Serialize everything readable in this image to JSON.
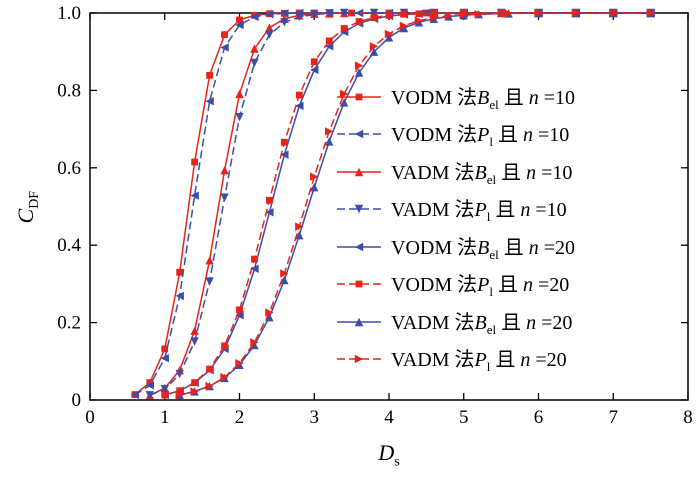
{
  "figure": {
    "bg": "#ffffff",
    "colors": {
      "red": "#e8231a",
      "blue": "#3a4ea8",
      "axis": "#000000"
    },
    "xlabel": {
      "main": "D",
      "sub": "s"
    },
    "ylabel": {
      "main": "C",
      "sub": "DF"
    },
    "xlim": [
      0,
      8
    ],
    "ylim": [
      0,
      1
    ],
    "x_ticks": [
      0,
      1,
      2,
      3,
      4,
      5,
      6,
      7,
      8
    ],
    "x_tick_labels": [
      "0",
      "1",
      "2",
      "3",
      "4",
      "5",
      "6",
      "7",
      "8"
    ],
    "y_ticks": [
      0,
      0.2,
      0.4,
      0.6,
      0.8,
      1.0
    ],
    "y_tick_labels": [
      "0",
      "0.2",
      "0.4",
      "0.6",
      "0.8",
      "1.0"
    ],
    "legend_cn1": "法",
    "legend_cn2": "且",
    "legend_var": "n"
  },
  "chart_data": {
    "type": "line",
    "title": "",
    "xlabel": "Ds",
    "ylabel": "CDF",
    "xlim": [
      0,
      8
    ],
    "ylim": [
      0,
      1
    ],
    "grid": false,
    "legend_position": "inside-right",
    "series": [
      {
        "name": "VODM 法Bel 且 n=10",
        "label_parts": {
          "method": "VODM",
          "sym": "B",
          "sub": "el",
          "n": "10"
        },
        "color": "red",
        "dash": false,
        "marker": "square",
        "points": [
          [
            0.6,
            0.014
          ],
          [
            0.8,
            0.045
          ],
          [
            1.0,
            0.132
          ],
          [
            1.2,
            0.33
          ],
          [
            1.4,
            0.615
          ],
          [
            1.6,
            0.839
          ],
          [
            1.8,
            0.944
          ],
          [
            2.0,
            0.982
          ],
          [
            2.2,
            0.994
          ],
          [
            2.4,
            0.998
          ],
          [
            2.6,
            0.999
          ],
          [
            2.8,
            1.0
          ],
          [
            3.0,
            1.0
          ],
          [
            3.5,
            1.0
          ],
          [
            4.0,
            1.0
          ],
          [
            4.5,
            1.0
          ],
          [
            5.0,
            1.0
          ],
          [
            5.5,
            1.0
          ],
          [
            6.0,
            1.0
          ],
          [
            6.5,
            1.0
          ],
          [
            7.0,
            1.0
          ],
          [
            7.5,
            1.0
          ]
        ]
      },
      {
        "name": "VODM 法Pl 且 n=10",
        "label_parts": {
          "method": "VODM",
          "sym": "P",
          "sub": "l",
          "n": "10"
        },
        "color": "blue",
        "dash": true,
        "marker": "tri-left",
        "points": [
          [
            0.6,
            0.013
          ],
          [
            0.8,
            0.038
          ],
          [
            1.0,
            0.108
          ],
          [
            1.2,
            0.269
          ],
          [
            1.4,
            0.528
          ],
          [
            1.6,
            0.772
          ],
          [
            1.8,
            0.911
          ],
          [
            2.0,
            0.969
          ],
          [
            2.2,
            0.99
          ],
          [
            2.4,
            0.997
          ],
          [
            2.6,
            0.999
          ],
          [
            2.8,
            1.0
          ],
          [
            3.2,
            1.0
          ],
          [
            3.6,
            1.0
          ],
          [
            4.0,
            1.0
          ],
          [
            4.5,
            1.0
          ],
          [
            5.0,
            1.0
          ],
          [
            5.5,
            1.0
          ],
          [
            6.0,
            1.0
          ],
          [
            6.5,
            1.0
          ],
          [
            7.0,
            1.0
          ],
          [
            7.5,
            1.0
          ]
        ]
      },
      {
        "name": "VADM 法Bel 且 n=10",
        "label_parts": {
          "method": "VADM",
          "sym": "B",
          "sub": "el",
          "n": "10"
        },
        "color": "red",
        "dash": false,
        "marker": "tri-up",
        "points": [
          [
            0.8,
            0.012
          ],
          [
            1.0,
            0.031
          ],
          [
            1.2,
            0.077
          ],
          [
            1.4,
            0.179
          ],
          [
            1.6,
            0.361
          ],
          [
            1.8,
            0.594
          ],
          [
            2.0,
            0.791
          ],
          [
            2.2,
            0.908
          ],
          [
            2.4,
            0.962
          ],
          [
            2.6,
            0.985
          ],
          [
            2.8,
            0.994
          ],
          [
            3.0,
            0.998
          ],
          [
            3.2,
            0.999
          ],
          [
            3.4,
            1.0
          ],
          [
            3.8,
            1.0
          ],
          [
            4.2,
            1.0
          ],
          [
            4.6,
            1.0
          ],
          [
            5.0,
            1.0
          ],
          [
            5.5,
            1.0
          ],
          [
            6.0,
            1.0
          ],
          [
            6.5,
            1.0
          ],
          [
            7.0,
            1.0
          ],
          [
            7.5,
            1.0
          ]
        ]
      },
      {
        "name": "VADM 法Pl 且 n=10",
        "label_parts": {
          "method": "VADM",
          "sym": "P",
          "sub": "l",
          "n": "10"
        },
        "color": "blue",
        "dash": true,
        "marker": "tri-down",
        "points": [
          [
            0.8,
            0.012
          ],
          [
            1.0,
            0.028
          ],
          [
            1.2,
            0.067
          ],
          [
            1.4,
            0.151
          ],
          [
            1.6,
            0.306
          ],
          [
            1.8,
            0.523
          ],
          [
            2.0,
            0.731
          ],
          [
            2.2,
            0.871
          ],
          [
            2.4,
            0.944
          ],
          [
            2.6,
            0.976
          ],
          [
            2.8,
            0.99
          ],
          [
            3.0,
            0.996
          ],
          [
            3.2,
            0.999
          ],
          [
            3.4,
            1.0
          ],
          [
            3.8,
            1.0
          ],
          [
            4.2,
            1.0
          ],
          [
            4.6,
            1.0
          ],
          [
            5.0,
            1.0
          ],
          [
            5.5,
            1.0
          ],
          [
            6.0,
            1.0
          ],
          [
            6.5,
            1.0
          ],
          [
            7.0,
            1.0
          ],
          [
            7.5,
            1.0
          ]
        ]
      },
      {
        "name": "VODM 法Bel 且 n=20",
        "label_parts": {
          "method": "VODM",
          "sym": "B",
          "sub": "el",
          "n": "20"
        },
        "color": "blue",
        "dash": false,
        "marker": "tri-left",
        "points": [
          [
            1.0,
            0.013
          ],
          [
            1.2,
            0.024
          ],
          [
            1.4,
            0.044
          ],
          [
            1.6,
            0.077
          ],
          [
            1.8,
            0.132
          ],
          [
            2.0,
            0.219
          ],
          [
            2.2,
            0.339
          ],
          [
            2.4,
            0.485
          ],
          [
            2.6,
            0.634
          ],
          [
            2.8,
            0.76
          ],
          [
            3.0,
            0.853
          ],
          [
            3.2,
            0.914
          ],
          [
            3.4,
            0.951
          ],
          [
            3.6,
            0.973
          ],
          [
            3.8,
            0.985
          ],
          [
            4.0,
            0.992
          ],
          [
            4.2,
            0.996
          ],
          [
            4.4,
            0.998
          ],
          [
            4.6,
            0.999
          ],
          [
            5.0,
            1.0
          ],
          [
            5.5,
            1.0
          ],
          [
            6.0,
            1.0
          ],
          [
            6.5,
            1.0
          ],
          [
            7.0,
            1.0
          ],
          [
            7.5,
            1.0
          ]
        ]
      },
      {
        "name": "VODM 法Pl 且 n=20",
        "label_parts": {
          "method": "VODM",
          "sym": "P",
          "sub": "l",
          "n": "20"
        },
        "color": "red",
        "dash": true,
        "marker": "square",
        "points": [
          [
            1.0,
            0.013
          ],
          [
            1.2,
            0.024
          ],
          [
            1.4,
            0.045
          ],
          [
            1.6,
            0.08
          ],
          [
            1.8,
            0.14
          ],
          [
            2.0,
            0.233
          ],
          [
            2.2,
            0.364
          ],
          [
            2.4,
            0.516
          ],
          [
            2.6,
            0.666
          ],
          [
            2.8,
            0.788
          ],
          [
            3.0,
            0.874
          ],
          [
            3.2,
            0.928
          ],
          [
            3.4,
            0.96
          ],
          [
            3.6,
            0.978
          ],
          [
            3.8,
            0.988
          ],
          [
            4.0,
            0.994
          ],
          [
            4.2,
            0.997
          ],
          [
            4.4,
            0.998
          ],
          [
            4.6,
            0.999
          ],
          [
            5.0,
            1.0
          ],
          [
            5.5,
            1.0
          ],
          [
            6.0,
            1.0
          ],
          [
            6.5,
            1.0
          ],
          [
            7.0,
            1.0
          ],
          [
            7.5,
            1.0
          ]
        ]
      },
      {
        "name": "VADM 法Bel 且 n=20",
        "label_parts": {
          "method": "VADM",
          "sym": "B",
          "sub": "el",
          "n": "20"
        },
        "color": "blue",
        "dash": false,
        "marker": "tri-up",
        "points": [
          [
            1.2,
            0.013
          ],
          [
            1.4,
            0.022
          ],
          [
            1.6,
            0.036
          ],
          [
            1.8,
            0.057
          ],
          [
            2.0,
            0.091
          ],
          [
            2.2,
            0.142
          ],
          [
            2.4,
            0.214
          ],
          [
            2.6,
            0.31
          ],
          [
            2.8,
            0.426
          ],
          [
            3.0,
            0.55
          ],
          [
            3.2,
            0.668
          ],
          [
            3.4,
            0.769
          ],
          [
            3.6,
            0.846
          ],
          [
            3.8,
            0.9
          ],
          [
            4.0,
            0.937
          ],
          [
            4.2,
            0.961
          ],
          [
            4.4,
            0.976
          ],
          [
            4.6,
            0.985
          ],
          [
            4.8,
            0.991
          ],
          [
            5.0,
            0.994
          ],
          [
            5.2,
            0.997
          ],
          [
            5.6,
            0.999
          ],
          [
            6.0,
            1.0
          ],
          [
            6.5,
            1.0
          ],
          [
            7.0,
            1.0
          ],
          [
            7.5,
            1.0
          ]
        ]
      },
      {
        "name": "VADM 法Pl 且 n=20",
        "label_parts": {
          "method": "VADM",
          "sym": "P",
          "sub": "l",
          "n": "20"
        },
        "color": "red",
        "dash": true,
        "marker": "tri-right",
        "points": [
          [
            1.2,
            0.013
          ],
          [
            1.4,
            0.022
          ],
          [
            1.6,
            0.036
          ],
          [
            1.8,
            0.059
          ],
          [
            2.0,
            0.095
          ],
          [
            2.2,
            0.149
          ],
          [
            2.4,
            0.226
          ],
          [
            2.6,
            0.327
          ],
          [
            2.8,
            0.448
          ],
          [
            3.0,
            0.577
          ],
          [
            3.2,
            0.694
          ],
          [
            3.4,
            0.791
          ],
          [
            3.6,
            0.864
          ],
          [
            3.8,
            0.914
          ],
          [
            4.0,
            0.946
          ],
          [
            4.2,
            0.967
          ],
          [
            4.4,
            0.98
          ],
          [
            4.6,
            0.988
          ],
          [
            4.8,
            0.993
          ],
          [
            5.0,
            0.996
          ],
          [
            5.2,
            0.997
          ],
          [
            5.6,
            0.999
          ],
          [
            6.0,
            1.0
          ],
          [
            6.5,
            1.0
          ],
          [
            7.0,
            1.0
          ],
          [
            7.5,
            1.0
          ]
        ]
      }
    ]
  }
}
